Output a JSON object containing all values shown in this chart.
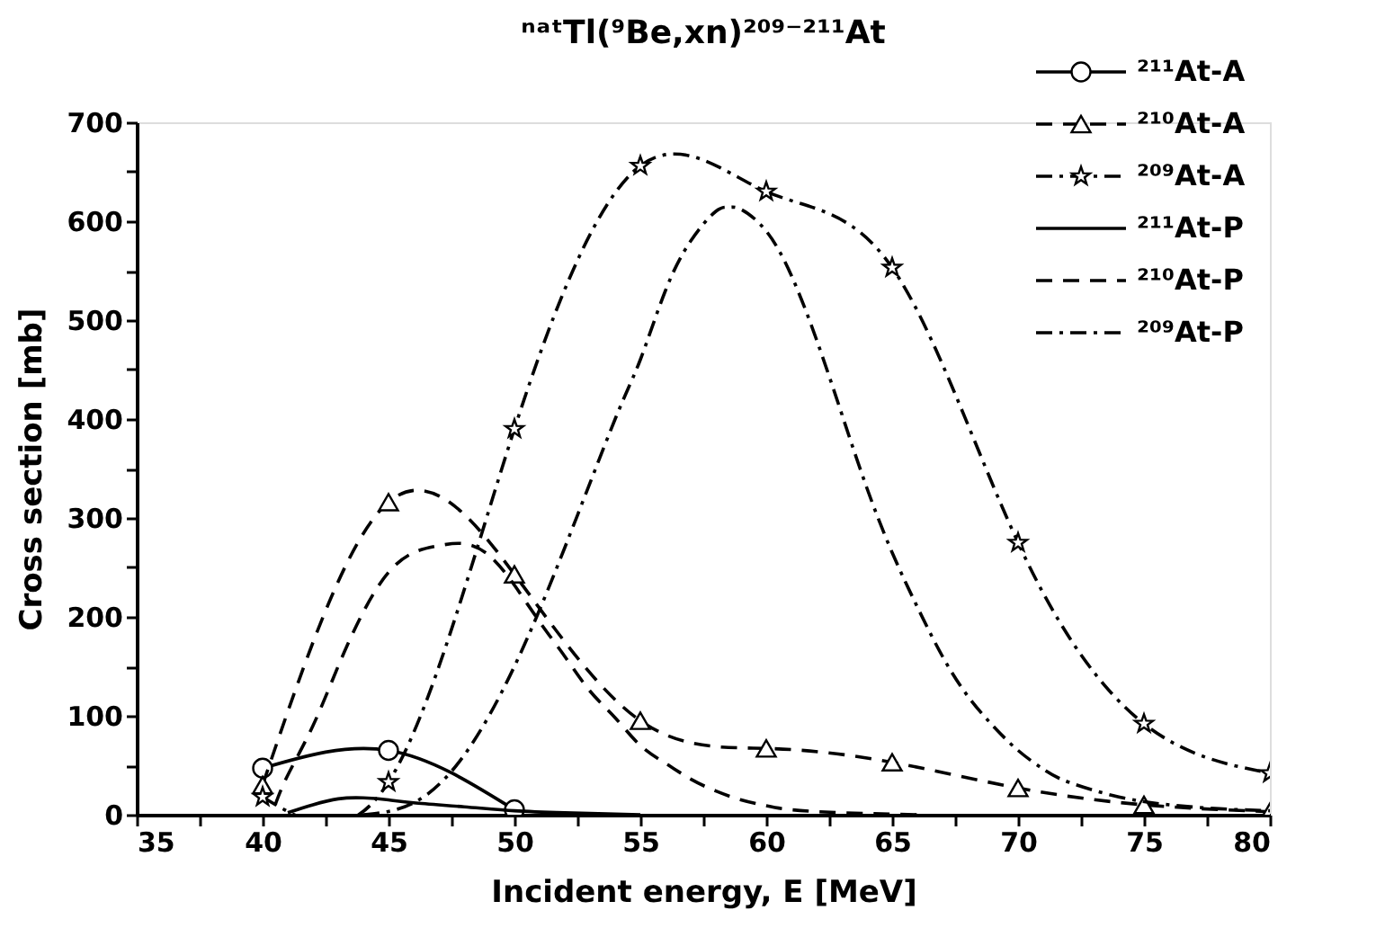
{
  "chart_data": {
    "type": "line",
    "title": "ⁿᵃᵗTl(⁹Be,xn)²⁰⁹⁻²¹¹At",
    "xlabel": "Incident energy, E [MeV]",
    "ylabel": "Cross section [mb]",
    "xlim": [
      35,
      80
    ],
    "ylim": [
      0,
      700
    ],
    "xticks": [
      35,
      {
        "value": 37.5,
        "label": null
      },
      40,
      {
        "value": 42.5,
        "label": null
      },
      45,
      {
        "value": 47.5,
        "label": null
      },
      50,
      {
        "value": 52.5,
        "label": null
      },
      55,
      {
        "value": 57.5,
        "label": null
      },
      60,
      {
        "value": 62.5,
        "label": null
      },
      65,
      {
        "value": 67.5,
        "label": null
      },
      70,
      {
        "value": 72.5,
        "label": null
      },
      75,
      {
        "value": 77.5,
        "label": null
      },
      80
    ],
    "yticks": [
      0,
      {
        "value": 50,
        "label": null
      },
      100,
      {
        "value": 150,
        "label": null
      },
      200,
      {
        "value": 250,
        "label": null
      },
      300,
      {
        "value": 350,
        "label": null
      },
      400,
      {
        "value": 450,
        "label": null
      },
      500,
      {
        "value": 550,
        "label": null
      },
      600,
      {
        "value": 650,
        "label": null
      },
      700
    ],
    "grid": false,
    "legend": "top right",
    "series": [
      {
        "name": "²¹¹At-A",
        "color": "#000000",
        "marker": "circle",
        "line_style": "solid",
        "x": [
          40,
          45,
          50
        ],
        "values": [
          47,
          65,
          5
        ]
      },
      {
        "name": "²¹⁰At-A",
        "color": "#000000",
        "marker": "triangle",
        "line_style": "dashed",
        "x": [
          40,
          45,
          50,
          55,
          60,
          65,
          70,
          75,
          80
        ],
        "values": [
          30,
          316,
          243,
          95,
          67,
          53,
          27,
          10,
          3
        ]
      },
      {
        "name": "²⁰⁹At-A",
        "color": "#000000",
        "marker": "star",
        "line_style": "dashdot",
        "x": [
          40,
          45,
          50,
          55,
          60,
          65,
          70,
          75,
          80
        ],
        "values": [
          18,
          33,
          390,
          656,
          630,
          553,
          275,
          92,
          42
        ]
      },
      {
        "name": "²¹¹At-P",
        "color": "#000000",
        "marker": "none",
        "line_style": "solid",
        "x": [
          41,
          42,
          43,
          44,
          45,
          46,
          48,
          50,
          52,
          55
        ],
        "values": [
          2,
          10,
          16,
          17,
          15,
          12,
          8,
          4,
          2,
          0
        ]
      },
      {
        "name": "²¹⁰At-P",
        "color": "#000000",
        "marker": "none",
        "line_style": "dashed",
        "x": [
          40.5,
          41,
          42,
          43,
          44,
          45,
          46,
          47,
          48,
          49,
          50,
          51,
          52,
          53,
          54,
          55,
          56,
          57,
          58,
          59,
          60,
          61,
          63,
          66
        ],
        "values": [
          10,
          40,
          90,
          150,
          205,
          245,
          265,
          272,
          274,
          262,
          232,
          195,
          160,
          125,
          98,
          70,
          52,
          36,
          24,
          15,
          9,
          5,
          2,
          0
        ]
      },
      {
        "name": "²⁰⁹At-P",
        "color": "#000000",
        "marker": "none",
        "line_style": "dashdot",
        "x": [
          44,
          46,
          48,
          50,
          52,
          54,
          55,
          56,
          57,
          58,
          58.5,
          59,
          60,
          61,
          62,
          63,
          64,
          65,
          66,
          67,
          68,
          69,
          70,
          71,
          72,
          74,
          76,
          78,
          80
        ],
        "values": [
          0,
          12,
          60,
          150,
          270,
          400,
          460,
          530,
          580,
          610,
          614,
          612,
          590,
          545,
          480,
          405,
          330,
          265,
          210,
          160,
          120,
          90,
          65,
          46,
          33,
          18,
          10,
          6,
          4
        ]
      }
    ]
  }
}
